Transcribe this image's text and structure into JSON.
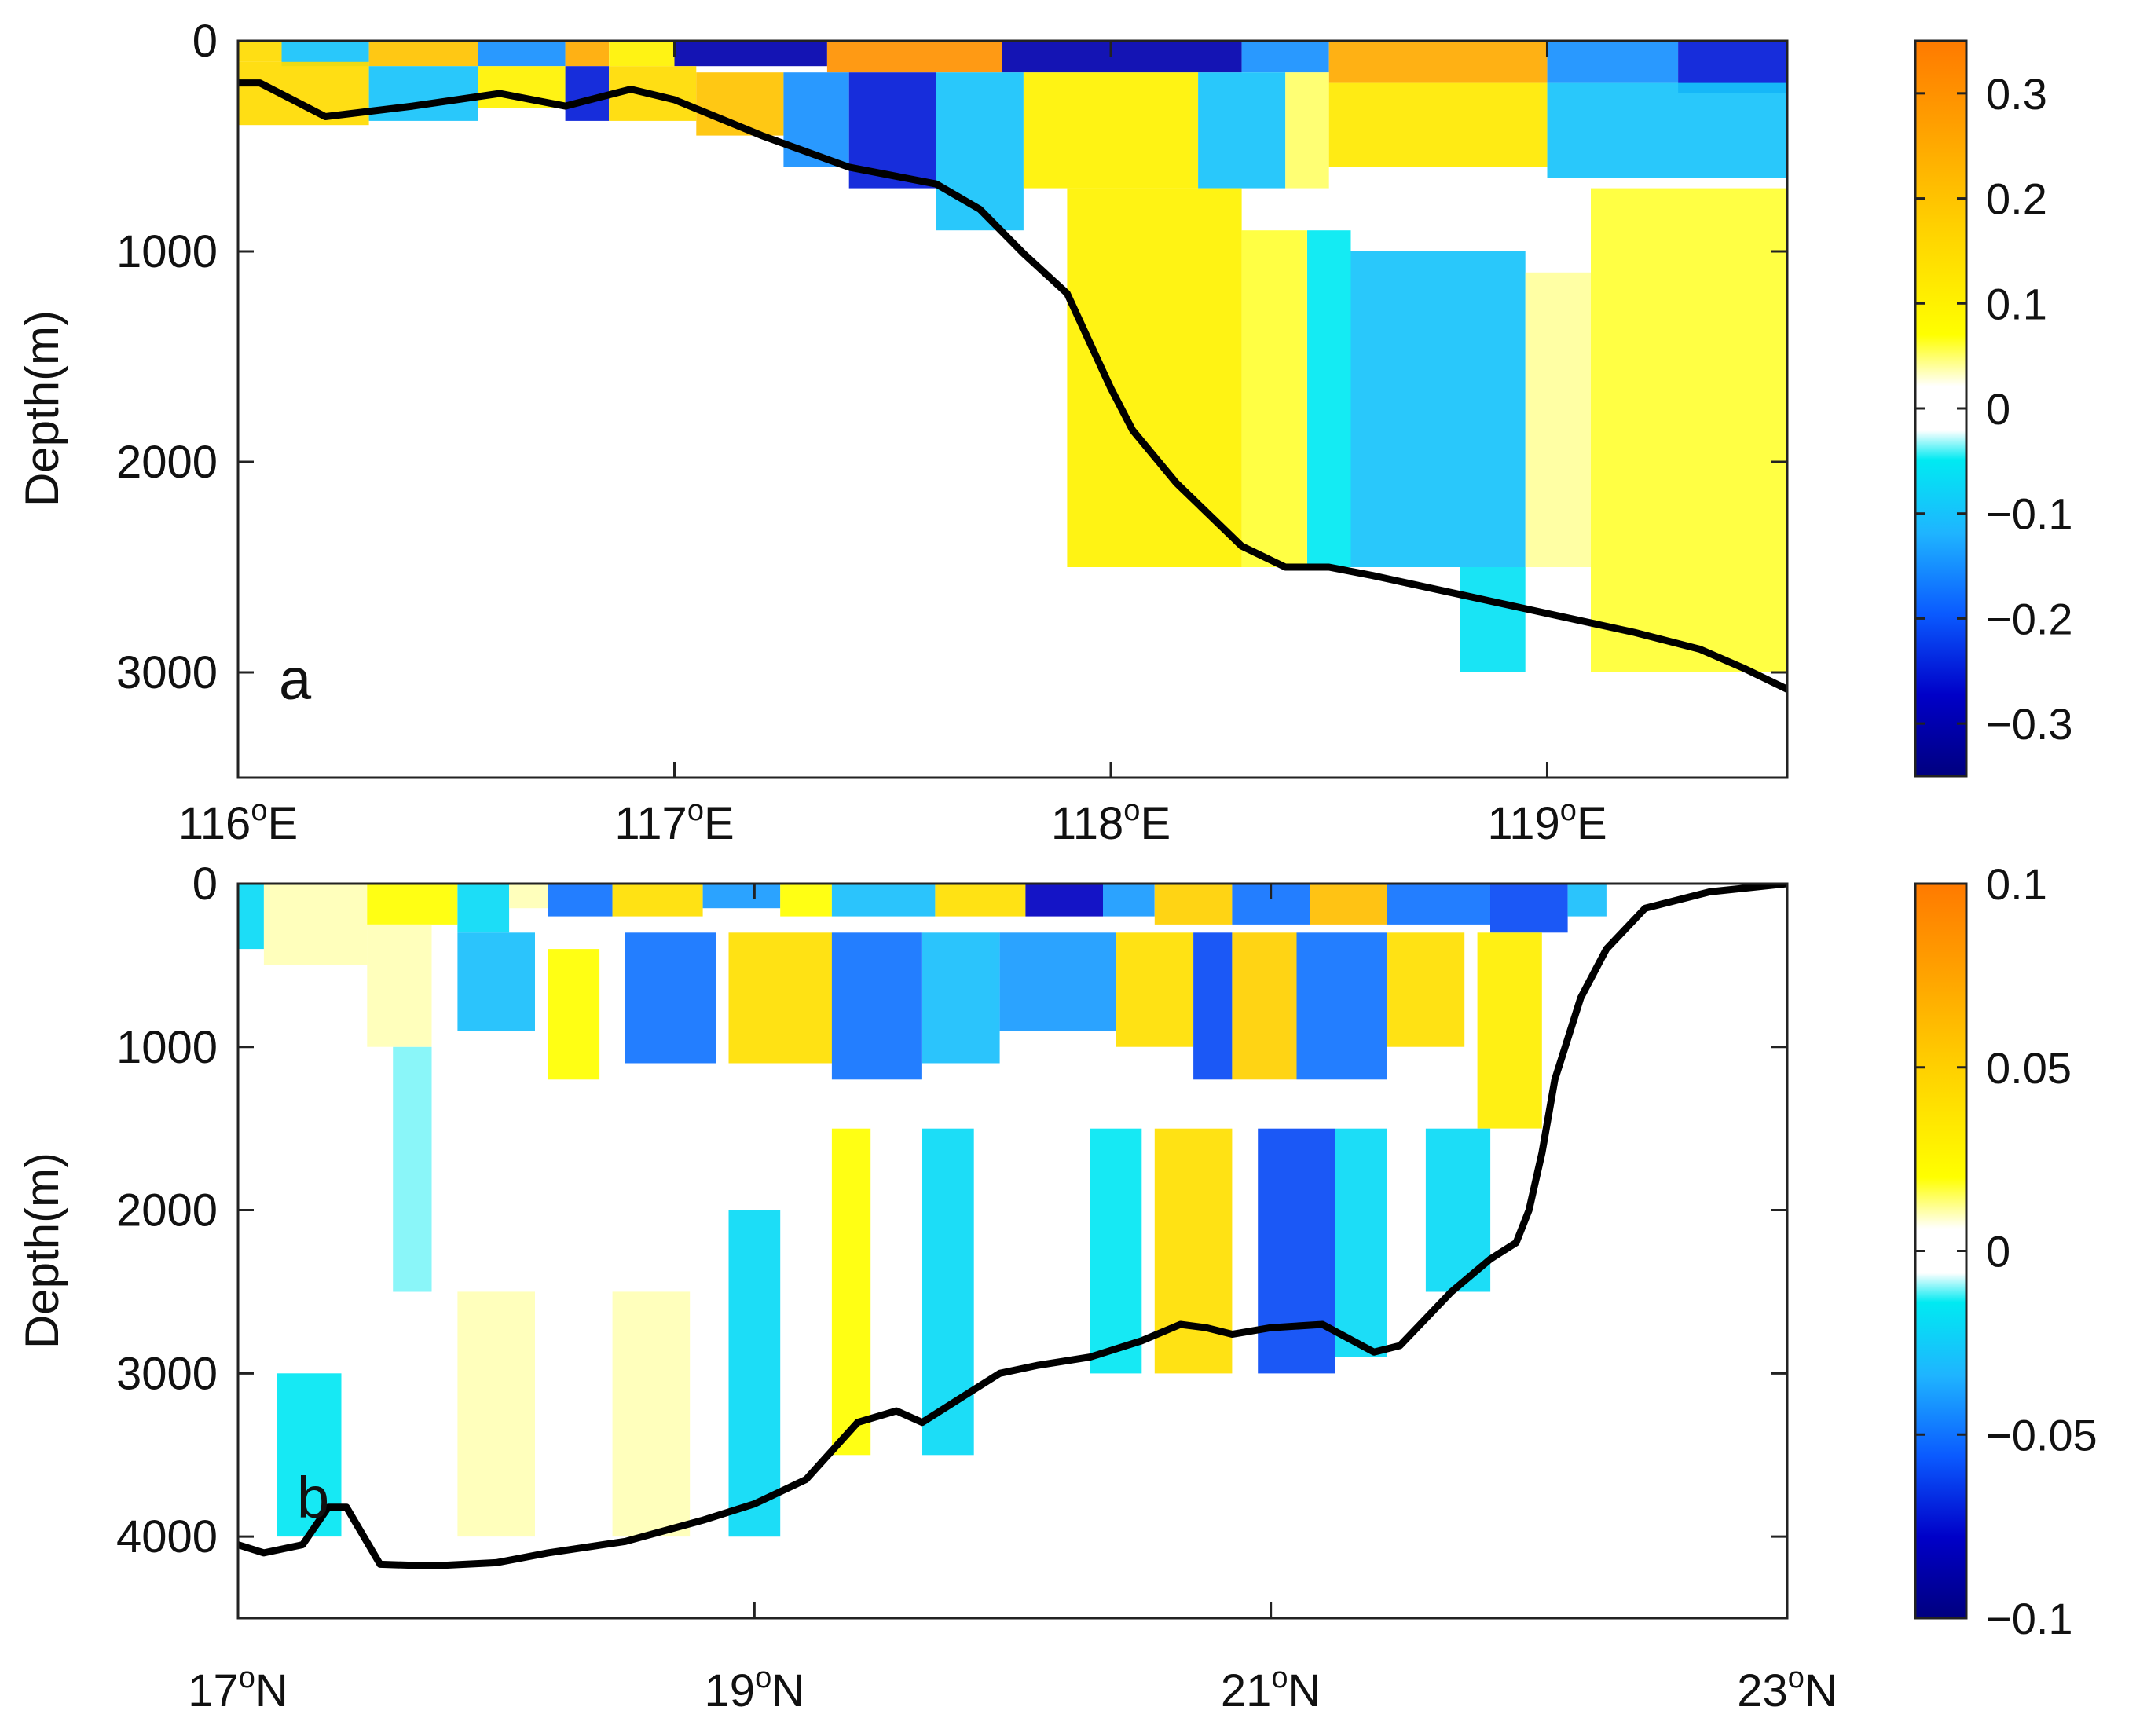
{
  "figure": {
    "colors": {
      "colormap": [
        "#00007f",
        "#0000c8",
        "#0a5aff",
        "#1fb4ff",
        "#00eaf2",
        "#ffffff",
        "#ffff00",
        "#ffd000",
        "#ff9e00",
        "#ff7a00"
      ],
      "bathymetry_line": "#000000",
      "axes": "#222222"
    }
  },
  "chart_data": [
    {
      "type": "heatmap",
      "panel_label": "a",
      "xlabel": "",
      "ylabel": "Depth(m)",
      "xlim": [
        116.0,
        119.55
      ],
      "ylim": [
        3500,
        0
      ],
      "yticks": [
        {
          "value": 0,
          "label": "0"
        },
        {
          "value": 1000,
          "label": "1000"
        },
        {
          "value": 2000,
          "label": "2000"
        },
        {
          "value": 3000,
          "label": "3000"
        }
      ],
      "xticks": [
        {
          "value": 116,
          "base": "116",
          "sup": "o",
          "suffix": "E"
        },
        {
          "value": 117,
          "base": "117",
          "sup": "o",
          "suffix": "E"
        },
        {
          "value": 118,
          "base": "118",
          "sup": "o",
          "suffix": "E"
        },
        {
          "value": 119,
          "base": "119",
          "sup": "o",
          "suffix": "E"
        }
      ],
      "colorbar": {
        "range": [
          -0.35,
          0.35
        ],
        "ticks": [
          {
            "value": 0.3,
            "label": "0.3"
          },
          {
            "value": 0.2,
            "label": "0.2"
          },
          {
            "value": 0.1,
            "label": "0.1"
          },
          {
            "value": 0,
            "label": "0"
          },
          {
            "value": -0.1,
            "label": "−0.1"
          },
          {
            "value": -0.2,
            "label": "−0.2"
          },
          {
            "value": -0.3,
            "label": "−0.3"
          }
        ]
      },
      "bathymetry": {
        "x": [
          116.0,
          116.05,
          116.2,
          116.4,
          116.6,
          116.75,
          116.9,
          117.0,
          117.2,
          117.4,
          117.6,
          117.7,
          117.8,
          117.9,
          118.0,
          118.05,
          118.15,
          118.3,
          118.4,
          118.5,
          118.6,
          118.8,
          119.0,
          119.2,
          119.35,
          119.45,
          119.55
        ],
        "y": [
          200,
          200,
          360,
          310,
          250,
          310,
          230,
          280,
          450,
          600,
          680,
          800,
          1010,
          1200,
          1650,
          1850,
          2100,
          2400,
          2500,
          2500,
          2540,
          2630,
          2720,
          2810,
          2890,
          2980,
          3080
        ]
      },
      "cells": [
        {
          "x": [
            116.0,
            116.1
          ],
          "y": [
            0,
            100
          ],
          "v": 0.15
        },
        {
          "x": [
            116.1,
            116.3
          ],
          "y": [
            0,
            120
          ],
          "v": -0.1
        },
        {
          "x": [
            116.3,
            116.55
          ],
          "y": [
            0,
            120
          ],
          "v": 0.2
        },
        {
          "x": [
            116.55,
            116.75
          ],
          "y": [
            0,
            120
          ],
          "v": -0.15
        },
        {
          "x": [
            116.75,
            116.85
          ],
          "y": [
            0,
            120
          ],
          "v": 0.25
        },
        {
          "x": [
            116.85,
            117.0
          ],
          "y": [
            0,
            120
          ],
          "v": 0.1
        },
        {
          "x": [
            117.0,
            117.35
          ],
          "y": [
            0,
            120
          ],
          "v": -0.3
        },
        {
          "x": [
            117.35,
            117.75
          ],
          "y": [
            0,
            150
          ],
          "v": 0.3
        },
        {
          "x": [
            117.75,
            118.3
          ],
          "y": [
            0,
            150
          ],
          "v": -0.3
        },
        {
          "x": [
            118.3,
            118.5
          ],
          "y": [
            0,
            150
          ],
          "v": -0.15
        },
        {
          "x": [
            118.5,
            119.0
          ],
          "y": [
            0,
            200
          ],
          "v": 0.25
        },
        {
          "x": [
            119.0,
            119.3
          ],
          "y": [
            0,
            200
          ],
          "v": -0.15
        },
        {
          "x": [
            119.3,
            119.55
          ],
          "y": [
            0,
            250
          ],
          "v": -0.25
        },
        {
          "x": [
            116.0,
            116.3
          ],
          "y": [
            100,
            400
          ],
          "v": 0.15
        },
        {
          "x": [
            116.3,
            116.55
          ],
          "y": [
            120,
            380
          ],
          "v": -0.1
        },
        {
          "x": [
            116.55,
            116.75
          ],
          "y": [
            120,
            320
          ],
          "v": 0.1
        },
        {
          "x": [
            116.75,
            116.85
          ],
          "y": [
            120,
            380
          ],
          "v": -0.25
        },
        {
          "x": [
            116.85,
            117.05
          ],
          "y": [
            120,
            380
          ],
          "v": 0.15
        },
        {
          "x": [
            117.05,
            117.25
          ],
          "y": [
            150,
            450
          ],
          "v": 0.2
        },
        {
          "x": [
            117.25,
            117.4
          ],
          "y": [
            150,
            600
          ],
          "v": -0.15
        },
        {
          "x": [
            117.4,
            117.6
          ],
          "y": [
            150,
            700
          ],
          "v": -0.25
        },
        {
          "x": [
            117.6,
            117.8
          ],
          "y": [
            150,
            900
          ],
          "v": -0.1
        },
        {
          "x": [
            117.8,
            118.2
          ],
          "y": [
            150,
            700
          ],
          "v": 0.1
        },
        {
          "x": [
            118.2,
            118.4
          ],
          "y": [
            150,
            700
          ],
          "v": -0.1
        },
        {
          "x": [
            118.4,
            118.5
          ],
          "y": [
            150,
            700
          ],
          "v": 0.05
        },
        {
          "x": [
            118.5,
            119.0
          ],
          "y": [
            200,
            600
          ],
          "v": 0.12
        },
        {
          "x": [
            119.0,
            119.55
          ],
          "y": [
            200,
            650
          ],
          "v": -0.1
        },
        {
          "x": [
            117.9,
            118.3
          ],
          "y": [
            700,
            2500
          ],
          "v": 0.1
        },
        {
          "x": [
            118.3,
            118.45
          ],
          "y": [
            900,
            2500
          ],
          "v": 0.06
        },
        {
          "x": [
            118.45,
            118.55
          ],
          "y": [
            900,
            2500
          ],
          "v": -0.05
        },
        {
          "x": [
            118.55,
            118.95
          ],
          "y": [
            1000,
            2500
          ],
          "v": -0.1
        },
        {
          "x": [
            118.8,
            118.95
          ],
          "y": [
            2500,
            3000
          ],
          "v": -0.06
        },
        {
          "x": [
            118.95,
            119.1
          ],
          "y": [
            1100,
            2500
          ],
          "v": 0.04
        },
        {
          "x": [
            119.1,
            119.55
          ],
          "y": [
            700,
            3000
          ],
          "v": 0.06
        }
      ]
    },
    {
      "type": "heatmap",
      "panel_label": "b",
      "xlabel": "",
      "ylabel": "Depth(m)",
      "xlim": [
        17.0,
        23.0
      ],
      "ylim": [
        4500,
        0
      ],
      "yticks": [
        {
          "value": 0,
          "label": "0"
        },
        {
          "value": 1000,
          "label": "1000"
        },
        {
          "value": 2000,
          "label": "2000"
        },
        {
          "value": 3000,
          "label": "3000"
        },
        {
          "value": 4000,
          "label": "4000"
        }
      ],
      "xticks": [
        {
          "value": 17,
          "base": "17",
          "sup": "o",
          "suffix": "N"
        },
        {
          "value": 19,
          "base": "19",
          "sup": "o",
          "suffix": "N"
        },
        {
          "value": 21,
          "base": "21",
          "sup": "o",
          "suffix": "N"
        },
        {
          "value": 23,
          "base": "23",
          "sup": "o",
          "suffix": "N"
        }
      ],
      "colorbar": {
        "range": [
          -0.1,
          0.1
        ],
        "ticks": [
          {
            "value": 0.1,
            "label": "0.1"
          },
          {
            "value": 0.05,
            "label": "0.05"
          },
          {
            "value": 0,
            "label": "0"
          },
          {
            "value": -0.05,
            "label": "−0.05"
          },
          {
            "value": -0.1,
            "label": "−0.1"
          }
        ]
      },
      "bathymetry": {
        "x": [
          17.0,
          17.1,
          17.25,
          17.35,
          17.42,
          17.55,
          17.75,
          18.0,
          18.2,
          18.5,
          18.8,
          19.0,
          19.2,
          19.4,
          19.55,
          19.65,
          19.75,
          19.95,
          20.1,
          20.3,
          20.5,
          20.65,
          20.75,
          20.85,
          21.0,
          21.2,
          21.4,
          21.5,
          21.7,
          21.85,
          21.95,
          22.0,
          22.05,
          22.1,
          22.2,
          22.3,
          22.45,
          22.7,
          23.0
        ],
        "y": [
          4050,
          4100,
          4050,
          3820,
          3820,
          4170,
          4180,
          4160,
          4100,
          4030,
          3900,
          3800,
          3650,
          3300,
          3230,
          3300,
          3200,
          3000,
          2950,
          2900,
          2800,
          2700,
          2720,
          2760,
          2720,
          2700,
          2870,
          2830,
          2500,
          2300,
          2200,
          2000,
          1650,
          1200,
          700,
          400,
          150,
          50,
          0
        ]
      },
      "cells": [
        {
          "x": [
            17.0,
            17.1
          ],
          "y": [
            0,
            400
          ],
          "v": -0.02
        },
        {
          "x": [
            17.1,
            17.5
          ],
          "y": [
            0,
            500
          ],
          "v": 0.01
        },
        {
          "x": [
            17.5,
            17.85
          ],
          "y": [
            0,
            250
          ],
          "v": 0.02
        },
        {
          "x": [
            17.85,
            18.05
          ],
          "y": [
            0,
            300
          ],
          "v": -0.02
        },
        {
          "x": [
            18.05,
            18.2
          ],
          "y": [
            0,
            150
          ],
          "v": 0.01
        },
        {
          "x": [
            18.2,
            18.45
          ],
          "y": [
            0,
            200
          ],
          "v": -0.05
        },
        {
          "x": [
            18.45,
            18.8
          ],
          "y": [
            0,
            200
          ],
          "v": 0.04
        },
        {
          "x": [
            18.8,
            19.1
          ],
          "y": [
            0,
            150
          ],
          "v": -0.04
        },
        {
          "x": [
            19.1,
            19.3
          ],
          "y": [
            0,
            200
          ],
          "v": 0.02
        },
        {
          "x": [
            19.3,
            19.7
          ],
          "y": [
            0,
            200
          ],
          "v": -0.03
        },
        {
          "x": [
            19.7,
            20.05
          ],
          "y": [
            0,
            200
          ],
          "v": 0.04
        },
        {
          "x": [
            20.05,
            20.35
          ],
          "y": [
            0,
            200
          ],
          "v": -0.08
        },
        {
          "x": [
            20.35,
            20.55
          ],
          "y": [
            0,
            200
          ],
          "v": -0.04
        },
        {
          "x": [
            20.55,
            20.85
          ],
          "y": [
            0,
            250
          ],
          "v": 0.05
        },
        {
          "x": [
            20.85,
            21.15
          ],
          "y": [
            0,
            250
          ],
          "v": -0.05
        },
        {
          "x": [
            21.15,
            21.45
          ],
          "y": [
            0,
            250
          ],
          "v": 0.06
        },
        {
          "x": [
            21.45,
            21.85
          ],
          "y": [
            0,
            250
          ],
          "v": -0.05
        },
        {
          "x": [
            21.85,
            22.15
          ],
          "y": [
            0,
            300
          ],
          "v": -0.06
        },
        {
          "x": [
            22.15,
            22.3
          ],
          "y": [
            0,
            200
          ],
          "v": -0.03
        },
        {
          "x": [
            17.5,
            17.75
          ],
          "y": [
            250,
            1000
          ],
          "v": 0.01
        },
        {
          "x": [
            17.85,
            18.15
          ],
          "y": [
            300,
            900
          ],
          "v": -0.03
        },
        {
          "x": [
            18.2,
            18.4
          ],
          "y": [
            400,
            1200
          ],
          "v": 0.02
        },
        {
          "x": [
            18.5,
            18.85
          ],
          "y": [
            300,
            1100
          ],
          "v": -0.05
        },
        {
          "x": [
            18.9,
            19.3
          ],
          "y": [
            300,
            1100
          ],
          "v": 0.04
        },
        {
          "x": [
            19.3,
            19.65
          ],
          "y": [
            300,
            1200
          ],
          "v": -0.05
        },
        {
          "x": [
            19.65,
            19.95
          ],
          "y": [
            300,
            1100
          ],
          "v": -0.03
        },
        {
          "x": [
            19.95,
            20.4
          ],
          "y": [
            300,
            900
          ],
          "v": -0.04
        },
        {
          "x": [
            20.4,
            20.7
          ],
          "y": [
            300,
            1000
          ],
          "v": 0.04
        },
        {
          "x": [
            20.7,
            20.85
          ],
          "y": [
            300,
            1200
          ],
          "v": -0.06
        },
        {
          "x": [
            20.85,
            21.1
          ],
          "y": [
            300,
            1200
          ],
          "v": 0.05
        },
        {
          "x": [
            21.1,
            21.45
          ],
          "y": [
            300,
            1200
          ],
          "v": -0.05
        },
        {
          "x": [
            21.45,
            21.75
          ],
          "y": [
            300,
            1000
          ],
          "v": 0.04
        },
        {
          "x": [
            21.8,
            22.05
          ],
          "y": [
            300,
            1500
          ],
          "v": 0.03
        },
        {
          "x": [
            17.6,
            17.75
          ],
          "y": [
            1000,
            2500
          ],
          "v": -0.01
        },
        {
          "x": [
            18.9,
            19.1
          ],
          "y": [
            2000,
            4000
          ],
          "v": -0.02
        },
        {
          "x": [
            19.3,
            19.45
          ],
          "y": [
            1500,
            3500
          ],
          "v": 0.02
        },
        {
          "x": [
            19.65,
            19.85
          ],
          "y": [
            1500,
            3500
          ],
          "v": -0.02
        },
        {
          "x": [
            20.3,
            20.5
          ],
          "y": [
            1500,
            3000
          ],
          "v": -0.015
        },
        {
          "x": [
            20.55,
            20.85
          ],
          "y": [
            1500,
            3000
          ],
          "v": 0.04
        },
        {
          "x": [
            20.95,
            21.25
          ],
          "y": [
            1500,
            3000
          ],
          "v": -0.06
        },
        {
          "x": [
            21.25,
            21.45
          ],
          "y": [
            1500,
            2900
          ],
          "v": -0.02
        },
        {
          "x": [
            21.6,
            21.85
          ],
          "y": [
            1500,
            2500
          ],
          "v": -0.02
        },
        {
          "x": [
            17.15,
            17.4
          ],
          "y": [
            3000,
            4000
          ],
          "v": -0.015
        },
        {
          "x": [
            17.85,
            18.15
          ],
          "y": [
            2500,
            4000
          ],
          "v": 0.01
        },
        {
          "x": [
            18.45,
            18.75
          ],
          "y": [
            2500,
            4000
          ],
          "v": 0.01
        }
      ]
    }
  ]
}
